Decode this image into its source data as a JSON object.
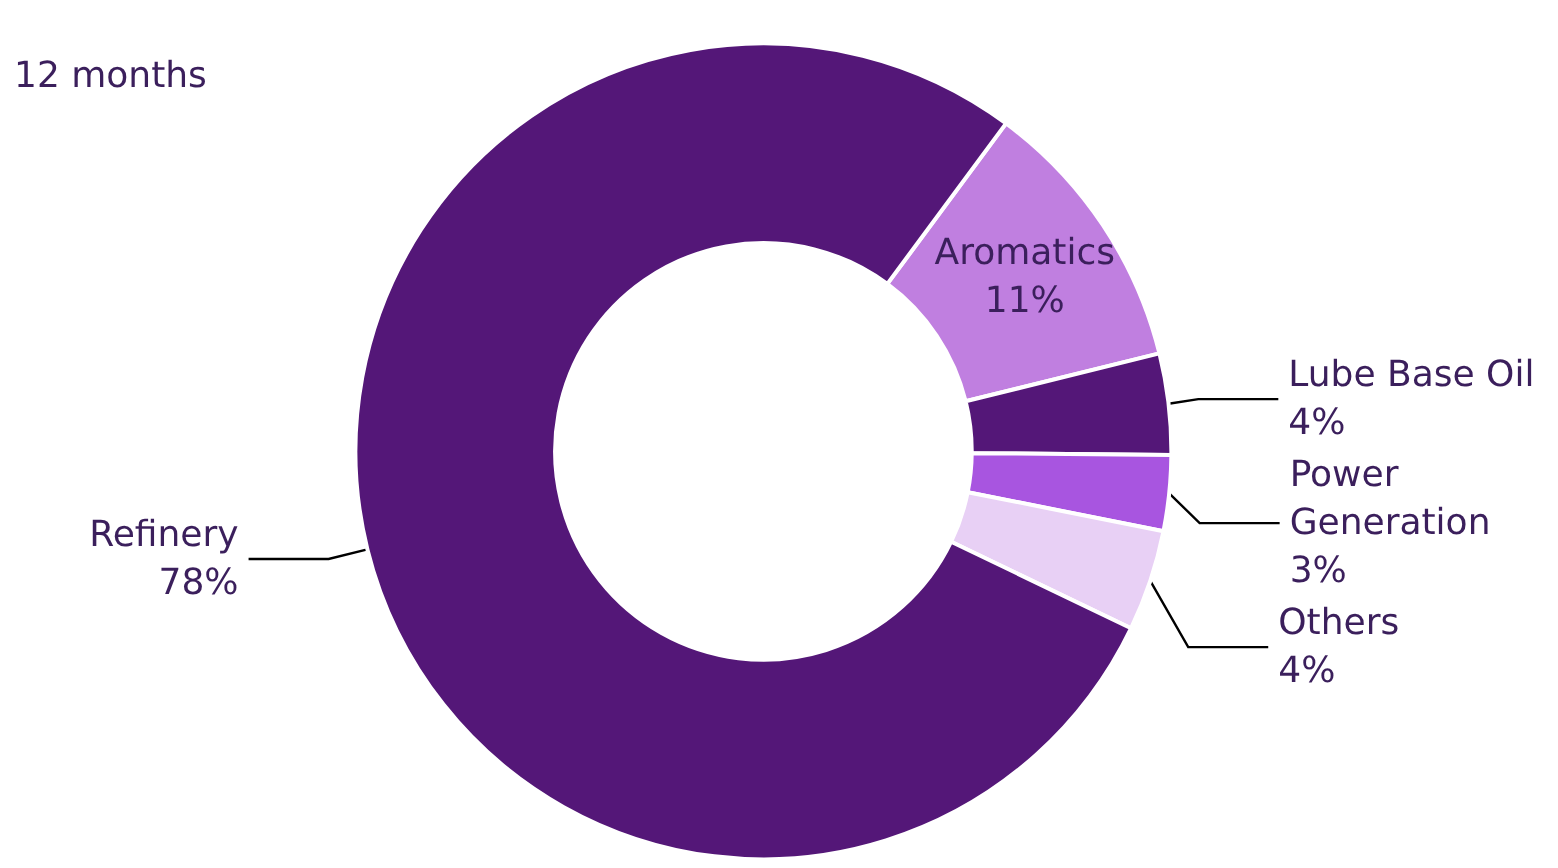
{
  "chart_data": {
    "type": "donut",
    "title": "12 months",
    "categories": [
      "Aromatics",
      "Lube Base Oil",
      "Power Generation",
      "Others",
      "Refinery"
    ],
    "values": [
      11,
      4,
      3,
      4,
      78
    ],
    "value_labels": [
      "11%",
      "4%",
      "3%",
      "4%",
      "78%"
    ],
    "colors": [
      "#c07fe0",
      "#541778",
      "#a855e0",
      "#e8d0f5",
      "#541778"
    ],
    "legend": false
  }
}
